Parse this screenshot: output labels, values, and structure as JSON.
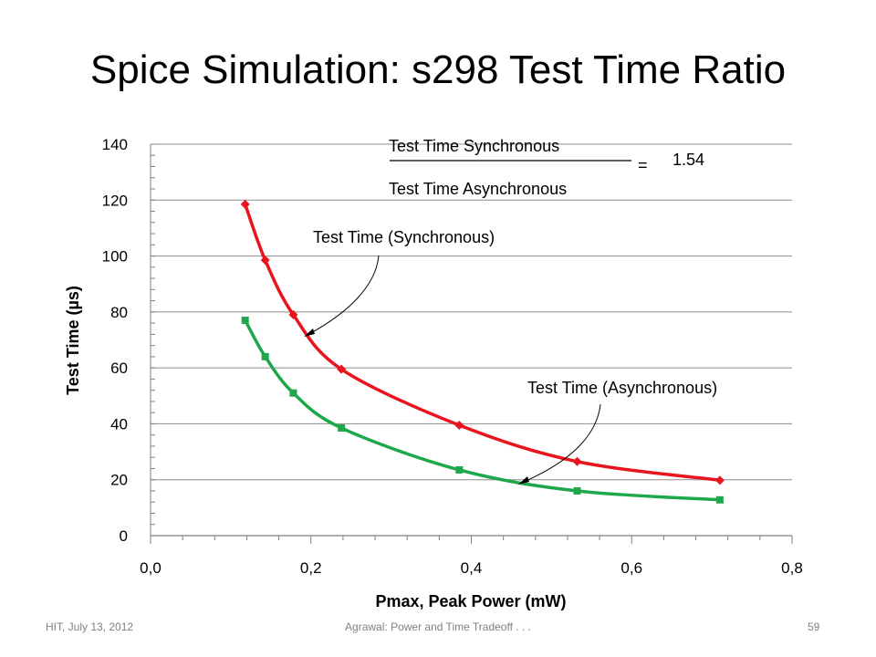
{
  "slide": {
    "title": "Spice Simulation: s298 Test Time Ratio",
    "footer_left": "HIT, July 13, 2012",
    "footer_center": "Agrawal: Power and Time Tradeoff . . .",
    "footer_right": "59"
  },
  "colors": {
    "synchronous": "#e8141e",
    "asynchronous": "#1ea84a",
    "grid": "#8c8c8c"
  },
  "chart_data": {
    "type": "scatter",
    "title": "",
    "xlabel": "Pmax, Peak Power (mW)",
    "ylabel": "Test Time (µs)",
    "xlim": [
      0,
      0.8
    ],
    "ylim": [
      0,
      140
    ],
    "x_ticks": [
      "0,0",
      "0,2",
      "0,4",
      "0,6",
      "0,8"
    ],
    "y_ticks": [
      "0",
      "20",
      "40",
      "60",
      "80",
      "100",
      "120",
      "140"
    ],
    "grid": "horizontal",
    "series": [
      {
        "name": "Test Time (Synchronous)",
        "color": "#e8141e",
        "marker": "diamond",
        "x": [
          0.118,
          0.143,
          0.178,
          0.238,
          0.385,
          0.532,
          0.71
        ],
        "y": [
          118.5,
          98.5,
          79,
          59.5,
          39.5,
          26.5,
          19.8
        ]
      },
      {
        "name": "Test Time (Asynchronous)",
        "color": "#1ea84a",
        "marker": "square",
        "x": [
          0.118,
          0.143,
          0.178,
          0.238,
          0.385,
          0.532,
          0.71
        ],
        "y": [
          77,
          64,
          51,
          38.5,
          23.5,
          16,
          12.8
        ]
      }
    ],
    "ratio_annotation": {
      "numerator": "Test Time Synchronous",
      "denominator": "Test Time Asynchronous",
      "equals": "=",
      "value": "1.54"
    }
  }
}
